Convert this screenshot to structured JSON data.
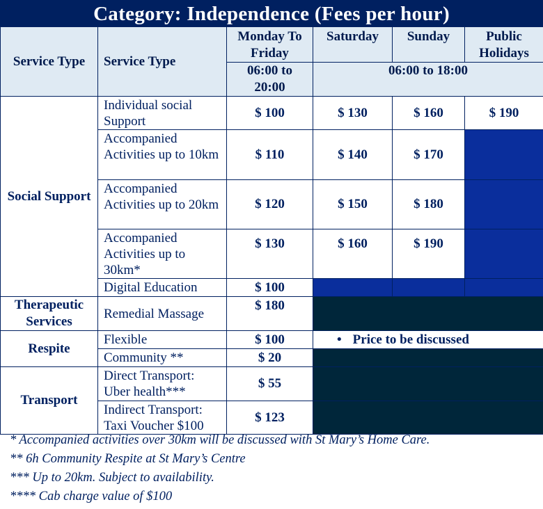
{
  "title": "Category: Independence (Fees per hour)",
  "header": {
    "col1": "Service Type",
    "col2": "Service Type",
    "weekday": "Monday To Friday",
    "weekday_hours": "06:00 to 20:00",
    "saturday": "Saturday",
    "sunday": "Sunday",
    "public_holidays": "Public Holidays",
    "weekend_hours": "06:00 to 18:00"
  },
  "categories": {
    "social_support": "Social Support",
    "therapeutic": "Therapeutic Services",
    "respite": "Respite",
    "transport": "Transport"
  },
  "rows": [
    {
      "service": "Individual social Support",
      "weekday": "$ 100",
      "saturday": "$ 130",
      "sunday": "$ 160",
      "holiday": "$ 190"
    },
    {
      "service": "Accompanied Activities up to 10km",
      "weekday": "$ 110",
      "saturday": "$ 140",
      "sunday": "$ 170"
    },
    {
      "service": "Accompanied Activities up to 20km",
      "weekday": "$ 120",
      "saturday": "$ 150",
      "sunday": "$ 180"
    },
    {
      "service": "Accompanied Activities up to 30km*",
      "weekday": "$ 130",
      "saturday": "$ 160",
      "sunday": "$ 190"
    },
    {
      "service": "Digital Education",
      "weekday": "$ 100"
    },
    {
      "service": "Remedial Massage",
      "weekday": "$ 180"
    },
    {
      "service": "Flexible",
      "weekday": "$ 100",
      "note": "Price to be discussed"
    },
    {
      "service": "Community **",
      "weekday": "$ 20"
    },
    {
      "service": "Direct Transport: Uber health***",
      "weekday": "$ 55"
    },
    {
      "service": "Indirect Transport: Taxi Voucher $100",
      "weekday": "$ 123"
    }
  ],
  "footnotes": [
    "* Accompanied activities over 30km will be discussed with St Mary’s Home Care.",
    "** 6h Community Respite at St Mary’s Centre",
    "*** Up to 20km. Subject to availability.",
    "**** Cab charge value of $100"
  ],
  "colors": {
    "navy": "#002060",
    "header_bg": "#dfeaf3",
    "blue_fill": "#0a2e9c",
    "dark_fill": "#00263a"
  }
}
